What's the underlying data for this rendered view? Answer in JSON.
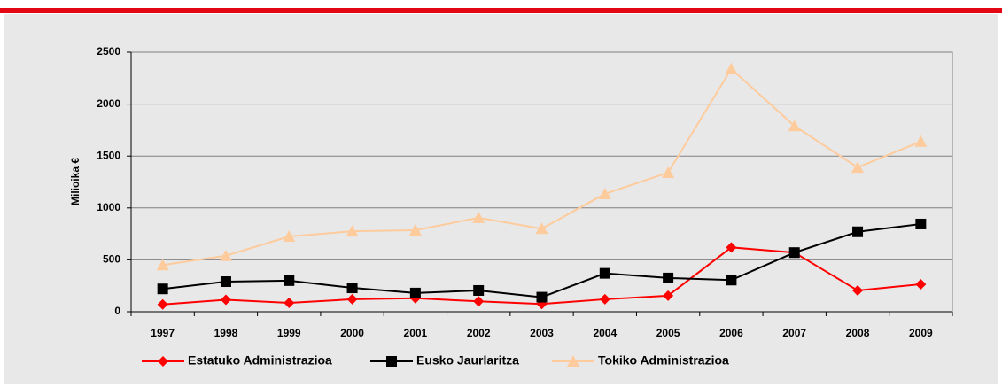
{
  "chart_data": {
    "type": "line",
    "categories": [
      "1997",
      "1998",
      "1999",
      "2000",
      "2001",
      "2002",
      "2003",
      "2004",
      "2005",
      "2006",
      "2007",
      "2008",
      "2009"
    ],
    "y_label": "Milioika €",
    "ylim": [
      0,
      2500
    ],
    "yticks": [
      0,
      500,
      1000,
      1500,
      2000,
      2500
    ],
    "grid": true,
    "legend": "bottom",
    "series": [
      {
        "name": "Estatuko Administrazioa",
        "color": "#ff0000",
        "marker": "diamond",
        "values": [
          70,
          115,
          85,
          120,
          130,
          100,
          75,
          120,
          155,
          620,
          570,
          205,
          265
        ]
      },
      {
        "name": "Eusko Jaurlaritza",
        "color": "#000000",
        "marker": "square",
        "values": [
          220,
          290,
          300,
          230,
          180,
          205,
          140,
          370,
          325,
          305,
          570,
          770,
          845
        ]
      },
      {
        "name": "Tokiko Administrazioa",
        "color": "#fdcb9c",
        "marker": "triangle",
        "values": [
          450,
          540,
          725,
          775,
          785,
          905,
          800,
          1135,
          1340,
          2340,
          1790,
          1390,
          1640
        ]
      }
    ]
  }
}
